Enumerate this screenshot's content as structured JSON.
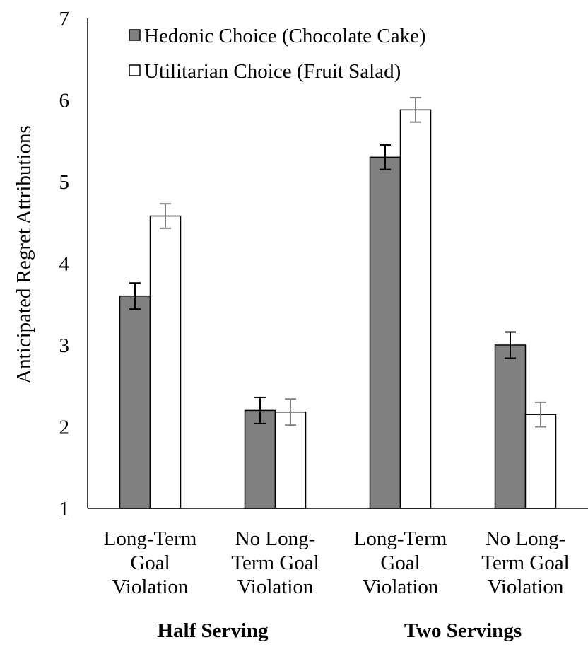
{
  "chart_data": {
    "type": "bar",
    "title": "",
    "xlabel": "",
    "ylabel": "Anticipated Regret Attributions",
    "ylim": [
      1,
      7
    ],
    "yticks": [
      1,
      2,
      3,
      4,
      5,
      6,
      7
    ],
    "grid": false,
    "legend_position": "top-left",
    "categories": [
      [
        "Long-Term",
        "Goal",
        "Violation"
      ],
      [
        "No Long-",
        "Term Goal",
        "Violation"
      ],
      [
        "Long-Term",
        "Goal",
        "Violation"
      ],
      [
        "No Long-",
        "Term Goal",
        "Violation"
      ]
    ],
    "groups": [
      {
        "label": "Half Serving",
        "categories": [
          0,
          1
        ]
      },
      {
        "label": "Two Servings",
        "categories": [
          2,
          3
        ]
      }
    ],
    "series": [
      {
        "name": "Hedonic Choice (Chocolate Cake)",
        "color": "#808080",
        "values": [
          3.6,
          2.2,
          5.3,
          3.0
        ],
        "error": [
          0.16,
          0.16,
          0.15,
          0.16
        ],
        "error_color": "#000000"
      },
      {
        "name": "Utilitarian Choice (Fruit Salad)",
        "color": "#ffffff",
        "values": [
          4.58,
          2.18,
          5.88,
          2.15
        ],
        "error": [
          0.15,
          0.16,
          0.15,
          0.15
        ],
        "error_color": "#808080"
      }
    ]
  }
}
